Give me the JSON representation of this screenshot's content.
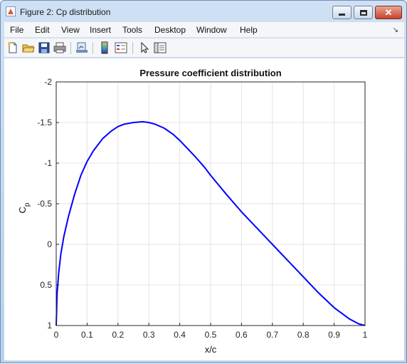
{
  "window": {
    "title": "Figure 2: Cp distribution"
  },
  "menu": {
    "items": [
      "File",
      "Edit",
      "View",
      "Insert",
      "Tools",
      "Desktop",
      "Window",
      "Help"
    ]
  },
  "toolbar": {
    "buttons": [
      "new-figure-icon",
      "open-file-icon",
      "save-icon",
      "print-icon",
      "link-plot-icon",
      "colorbar-icon",
      "legend-icon",
      "edit-plot-arrow-icon",
      "plot-browser-icon"
    ]
  },
  "chart_data": {
    "type": "line",
    "title": "Pressure coefficient distribution",
    "xlabel": "x/c",
    "ylabel": "C",
    "ylabel_sub": "p",
    "xlim": [
      0,
      1
    ],
    "ylim": [
      -2,
      1
    ],
    "y_reversed": true,
    "grid": true,
    "xticks": [
      "0",
      "0.1",
      "0.2",
      "0.3",
      "0.4",
      "0.5",
      "0.6",
      "0.7",
      "0.8",
      "0.9",
      "1"
    ],
    "yticks": [
      "-2",
      "-1.5",
      "-1",
      "-0.5",
      "0",
      "0.5",
      "1"
    ],
    "line_color": "#0000ff",
    "series": [
      {
        "x": [
          0.0,
          0.003,
          0.008,
          0.015,
          0.025,
          0.04,
          0.06,
          0.08,
          0.1,
          0.12,
          0.15,
          0.18,
          0.2,
          0.22,
          0.25,
          0.28,
          0.3,
          0.32,
          0.35,
          0.38,
          0.4,
          0.42,
          0.45,
          0.48,
          0.5,
          0.55,
          0.6,
          0.65,
          0.7,
          0.75,
          0.8,
          0.85,
          0.9,
          0.95,
          0.98,
          1.0
        ],
        "y": [
          1.0,
          0.6,
          0.35,
          0.12,
          -0.1,
          -0.35,
          -0.62,
          -0.85,
          -1.02,
          -1.15,
          -1.3,
          -1.4,
          -1.45,
          -1.48,
          -1.5,
          -1.51,
          -1.5,
          -1.48,
          -1.43,
          -1.35,
          -1.28,
          -1.2,
          -1.08,
          -0.95,
          -0.85,
          -0.62,
          -0.4,
          -0.2,
          0.0,
          0.2,
          0.4,
          0.6,
          0.78,
          0.92,
          0.98,
          1.0
        ]
      }
    ]
  }
}
